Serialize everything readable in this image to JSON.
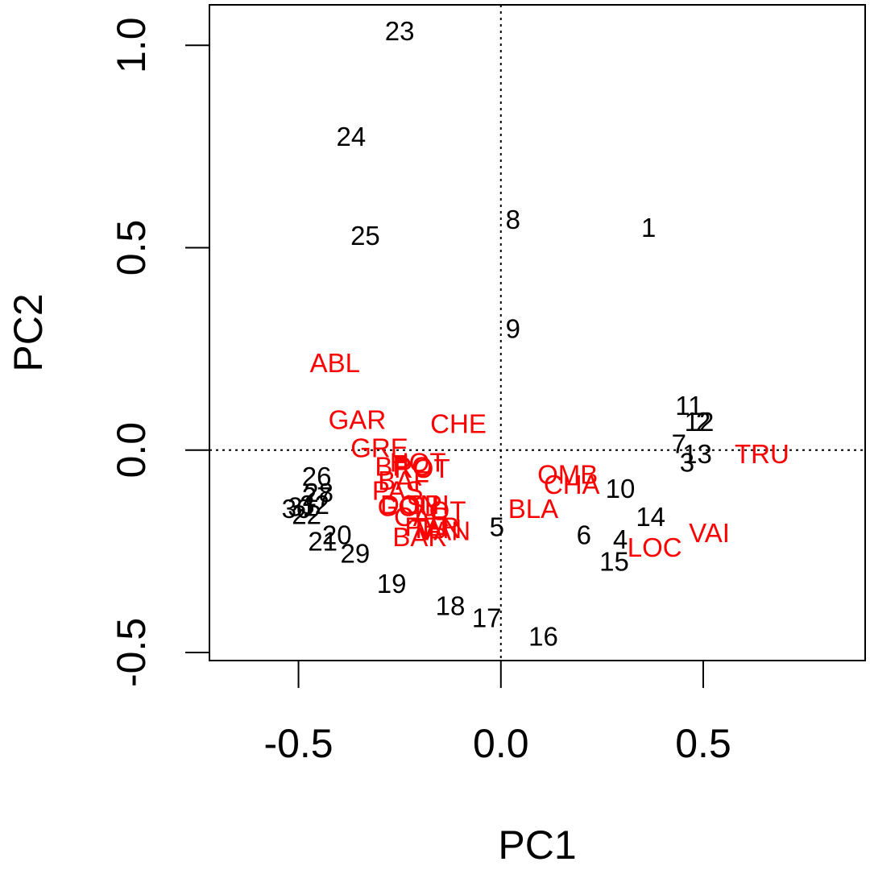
{
  "chart_data": {
    "type": "scatter",
    "xlabel": "PC1",
    "ylabel": "PC2",
    "xlim": [
      -0.72,
      0.9
    ],
    "ylim": [
      -0.52,
      1.1
    ],
    "x_ticks": [
      -0.5,
      0.0,
      0.5
    ],
    "x_tick_labels": [
      "-0.5",
      "0.0",
      "0.5"
    ],
    "y_ticks": [
      -0.5,
      0.0,
      0.5,
      1.0
    ],
    "y_tick_labels": [
      "-0.5",
      "0.0",
      "0.5",
      "1.0"
    ],
    "reference_lines": {
      "x": 0,
      "y": 0,
      "style": "dotted"
    },
    "colors": {
      "observations": "#000000",
      "variables": "#ff0000"
    },
    "grid": false,
    "legend": "none",
    "series": [
      {
        "color": "#000000",
        "points": [
          {
            "label": "1",
            "x": 0.365,
            "y": 0.55
          },
          {
            "label": "2",
            "x": 0.5,
            "y": 0.07
          },
          {
            "label": "3",
            "x": 0.46,
            "y": -0.03
          },
          {
            "label": "4",
            "x": 0.295,
            "y": -0.22
          },
          {
            "label": "5",
            "x": -0.01,
            "y": -0.19
          },
          {
            "label": "6",
            "x": 0.205,
            "y": -0.21
          },
          {
            "label": "7",
            "x": 0.44,
            "y": 0.015
          },
          {
            "label": "8",
            "x": 0.03,
            "y": 0.57
          },
          {
            "label": "9",
            "x": 0.03,
            "y": 0.3
          },
          {
            "label": "10",
            "x": 0.295,
            "y": -0.095
          },
          {
            "label": "11",
            "x": 0.465,
            "y": 0.11
          },
          {
            "label": "12",
            "x": 0.49,
            "y": 0.07
          },
          {
            "label": "13",
            "x": 0.485,
            "y": -0.01
          },
          {
            "label": "14",
            "x": 0.37,
            "y": -0.165
          },
          {
            "label": "15",
            "x": 0.28,
            "y": -0.275
          },
          {
            "label": "16",
            "x": 0.105,
            "y": -0.46
          },
          {
            "label": "17",
            "x": -0.035,
            "y": -0.415
          },
          {
            "label": "18",
            "x": -0.125,
            "y": -0.385
          },
          {
            "label": "19",
            "x": -0.27,
            "y": -0.33
          },
          {
            "label": "20",
            "x": -0.405,
            "y": -0.21
          },
          {
            "label": "21",
            "x": -0.44,
            "y": -0.225
          },
          {
            "label": "22",
            "x": -0.48,
            "y": -0.16
          },
          {
            "label": "23",
            "x": -0.25,
            "y": 1.035
          },
          {
            "label": "24",
            "x": -0.37,
            "y": 0.775
          },
          {
            "label": "25",
            "x": -0.335,
            "y": 0.53
          },
          {
            "label": "26",
            "x": -0.455,
            "y": -0.065
          },
          {
            "label": "27",
            "x": -0.455,
            "y": -0.115
          },
          {
            "label": "28",
            "x": -0.45,
            "y": -0.105
          },
          {
            "label": "29",
            "x": -0.36,
            "y": -0.255
          },
          {
            "label": "30",
            "x": -0.505,
            "y": -0.145
          },
          {
            "label": "31",
            "x": -0.49,
            "y": -0.14
          },
          {
            "label": "32",
            "x": -0.46,
            "y": -0.135
          }
        ]
      },
      {
        "color": "#ff0000",
        "points": [
          {
            "label": "ABL",
            "x": -0.41,
            "y": 0.215
          },
          {
            "label": "GAR",
            "x": -0.355,
            "y": 0.075
          },
          {
            "label": "CHE",
            "x": -0.105,
            "y": 0.065
          },
          {
            "label": "GRE",
            "x": -0.3,
            "y": 0.005
          },
          {
            "label": "BRO",
            "x": -0.24,
            "y": -0.04
          },
          {
            "label": "HOT",
            "x": -0.205,
            "y": -0.03
          },
          {
            "label": "ROT",
            "x": -0.195,
            "y": -0.045
          },
          {
            "label": "TRU",
            "x": 0.645,
            "y": -0.01
          },
          {
            "label": "OMB",
            "x": 0.165,
            "y": -0.06
          },
          {
            "label": "CHA",
            "x": 0.175,
            "y": -0.085
          },
          {
            "label": "BAF",
            "x": -0.24,
            "y": -0.075
          },
          {
            "label": "PAS",
            "x": -0.255,
            "y": -0.1
          },
          {
            "label": "DON",
            "x": -0.225,
            "y": -0.135
          },
          {
            "label": "BLA",
            "x": 0.08,
            "y": -0.145
          },
          {
            "label": "GOU",
            "x": -0.23,
            "y": -0.14
          },
          {
            "label": "SPI",
            "x": -0.18,
            "y": -0.135
          },
          {
            "label": "LOT",
            "x": -0.15,
            "y": -0.15
          },
          {
            "label": "CAR",
            "x": -0.195,
            "y": -0.165
          },
          {
            "label": "PER",
            "x": -0.17,
            "y": -0.19
          },
          {
            "label": "TAN",
            "x": -0.16,
            "y": -0.195
          },
          {
            "label": "VAN",
            "x": -0.14,
            "y": -0.2
          },
          {
            "label": "BAR",
            "x": -0.2,
            "y": -0.215
          },
          {
            "label": "VAI",
            "x": 0.515,
            "y": -0.205
          },
          {
            "label": "LOC",
            "x": 0.38,
            "y": -0.24
          }
        ]
      }
    ]
  }
}
